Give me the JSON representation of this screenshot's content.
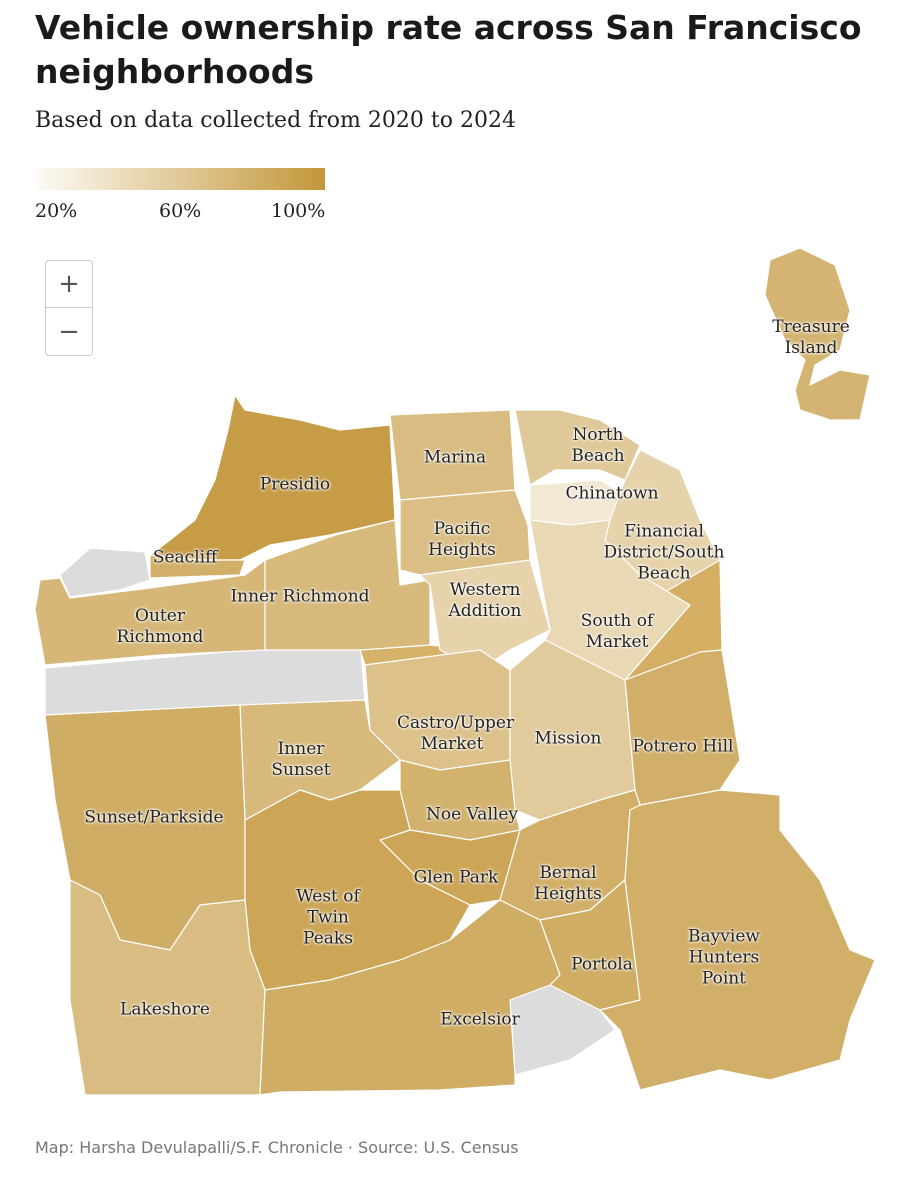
{
  "header": {
    "title": "Vehicle ownership rate across San Francisco neighborhoods",
    "subtitle": "Based on data collected from 2020 to 2024"
  },
  "legend": {
    "xlim": [
      20,
      100
    ],
    "colors": [
      "#fdfbf6",
      "#c3963a"
    ],
    "ticks": [
      {
        "value": 20,
        "label": "20%"
      },
      {
        "value": 60,
        "label": "60%"
      },
      {
        "value": 100,
        "label": "100%"
      }
    ]
  },
  "controls": {
    "zoom_in": "+",
    "zoom_out": "−"
  },
  "neighborhoods": [
    {
      "label": "Presidio",
      "value": 95
    },
    {
      "label": "Seacliff",
      "value": 80
    },
    {
      "label": "Outer Richmond",
      "value": 74
    },
    {
      "label": "Inner Richmond",
      "value": 72
    },
    {
      "label": "Marina",
      "value": 70
    },
    {
      "label": "Pacific Heights",
      "value": 68
    },
    {
      "label": "Western Addition",
      "value": 52
    },
    {
      "label": "North Beach",
      "value": 60
    },
    {
      "label": "Chinatown",
      "value": 35
    },
    {
      "label": "Financial District/South Beach",
      "value": 52
    },
    {
      "label": "South of Market",
      "value": 48
    },
    {
      "label": "Castro/Upper Market",
      "value": 66
    },
    {
      "label": "Mission",
      "value": 58
    },
    {
      "label": "Potrero Hill",
      "value": 80
    },
    {
      "label": "Inner Sunset",
      "value": 72
    },
    {
      "label": "Noe Valley",
      "value": 78
    },
    {
      "label": "Sunset/Parkside",
      "value": 82
    },
    {
      "label": "Glen Park",
      "value": 88
    },
    {
      "label": "West of Twin Peaks",
      "value": 88
    },
    {
      "label": "Bernal Heights",
      "value": 80
    },
    {
      "label": "Lakeshore",
      "value": 70
    },
    {
      "label": "Excelsior",
      "value": 82
    },
    {
      "label": "Portola",
      "value": 82
    },
    {
      "label": "Bayview Hunters Point",
      "value": 80
    },
    {
      "label": "Treasure Island",
      "value": 76
    }
  ],
  "footer": "Map: Harsha Devulapalli/S.F. Chronicle · Source: U.S. Census"
}
